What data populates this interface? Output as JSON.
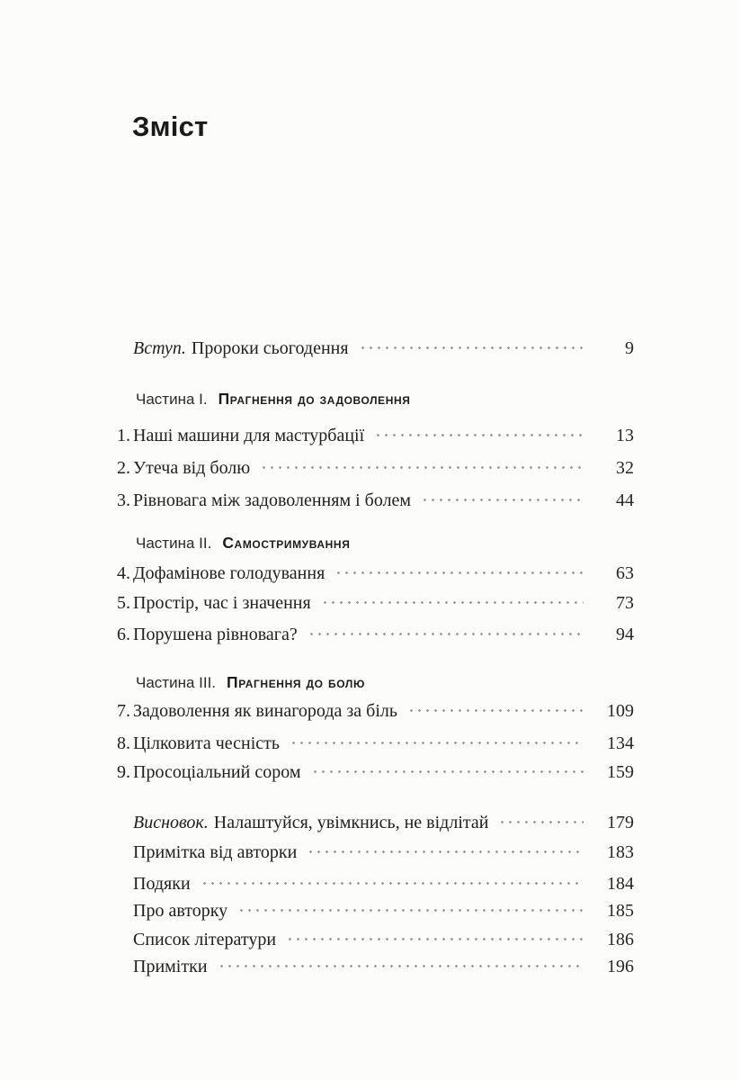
{
  "page": {
    "title": "Зміст"
  },
  "toc": {
    "entries": [
      {
        "kind": "intro",
        "lead": "Вступ.",
        "title": "Пророки сьогодення",
        "page": "9"
      },
      {
        "kind": "part",
        "label": "Частина I.",
        "title": "Прагнення до задоволення"
      },
      {
        "kind": "chapter",
        "num": "1.",
        "title": "Наші машини для мастурбації",
        "page": "13"
      },
      {
        "kind": "chapter",
        "num": "2.",
        "title": "Утеча від болю",
        "page": "32"
      },
      {
        "kind": "chapter",
        "num": "3.",
        "title": "Рівновага між задоволенням і болем",
        "page": "44"
      },
      {
        "kind": "part",
        "label": "Частина II.",
        "title": "Самостримування"
      },
      {
        "kind": "chapter",
        "num": "4.",
        "title": "Дофамінове голодування",
        "page": "63"
      },
      {
        "kind": "chapter",
        "num": "5.",
        "title": "Простір, час і значення",
        "page": "73"
      },
      {
        "kind": "chapter",
        "num": "6.",
        "title": "Порушена рівновага?",
        "page": "94"
      },
      {
        "kind": "part",
        "label": "Частина III.",
        "title": "Прагнення до болю"
      },
      {
        "kind": "chapter",
        "num": "7.",
        "title": "Задоволення як винагорода за біль",
        "page": "109"
      },
      {
        "kind": "chapter",
        "num": "8.",
        "title": "Цілковита чесність",
        "page": "134"
      },
      {
        "kind": "chapter",
        "num": "9.",
        "title": "Просоціальний сором",
        "page": "159"
      },
      {
        "kind": "intro",
        "lead": "Висновок.",
        "title": "Налаштуйся, увімкнись, не відлітай",
        "page": "179"
      },
      {
        "kind": "plain",
        "title": "Примітка від авторки",
        "page": "183"
      },
      {
        "kind": "plain",
        "title": "Подяки",
        "page": "184"
      },
      {
        "kind": "plain",
        "title": "Про авторку",
        "page": "185"
      },
      {
        "kind": "plain",
        "title": "Список літератури",
        "page": "186"
      },
      {
        "kind": "plain",
        "title": "Примітки",
        "page": "196"
      }
    ]
  },
  "colors": {
    "text": "#212121",
    "heading": "#1b1b1b",
    "dot_leader": "#949494",
    "background": "#fcfcfb"
  }
}
